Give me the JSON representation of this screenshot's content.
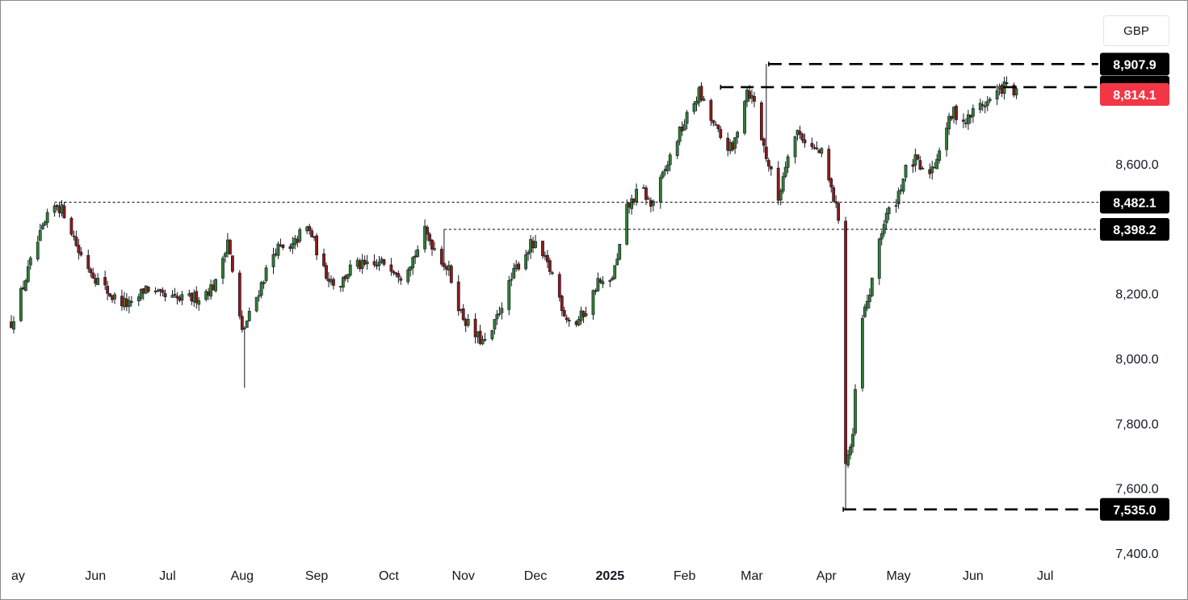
{
  "currency": "GBP",
  "colors": {
    "up": "#2e7d32",
    "down": "#8b1a1a",
    "wick": "#131722",
    "current_price_bg": "#f23645",
    "level_bg": "#000000",
    "axis_text": "#131722"
  },
  "chart_data": {
    "type": "candlestick",
    "ylim": [
      7400,
      8960
    ],
    "y_ticks": [
      "7,400.0",
      "7,600.0",
      "7,800.0",
      "8,000.0",
      "8,200.0",
      "8,600.0"
    ],
    "y_tick_values": [
      7400,
      7600,
      7800,
      8000,
      8200,
      8600
    ],
    "x_ticks": [
      "ay",
      "Jun",
      "Jul",
      "Aug",
      "Sep",
      "Oct",
      "Nov",
      "Dec",
      "2025",
      "Feb",
      "Mar",
      "Apr",
      "May",
      "Jun",
      "Jul"
    ],
    "x_tick_days": [
      14,
      45,
      75,
      106,
      137,
      167,
      198,
      228,
      259,
      290,
      318,
      349,
      379,
      410,
      440
    ],
    "x_tick_bold": [
      false,
      false,
      false,
      false,
      false,
      false,
      false,
      false,
      true,
      false,
      false,
      false,
      false,
      false,
      false
    ],
    "xlim_days": [
      10,
      448
    ],
    "horizontal_levels": [
      {
        "value": 8907.9,
        "label": "8,907.9",
        "style": "dashed",
        "from_day": 325,
        "partially_hidden": true
      },
      {
        "value": 8836.7,
        "label": "8,836.7",
        "style": "dashed",
        "from_day": 305
      },
      {
        "value": 8482.1,
        "label": "8,482.1",
        "style": "dotted",
        "from_day": 28
      },
      {
        "value": 8398.2,
        "label": "8,398.2",
        "style": "dotted",
        "from_day": 190
      },
      {
        "value": 7535.0,
        "label": "7,535.0",
        "style": "dashed",
        "from_day": 356
      }
    ],
    "current_price": {
      "value": 8814.1,
      "label": "8,814.1"
    },
    "close_anchors": [
      [
        10,
        8110
      ],
      [
        14,
        8200
      ],
      [
        20,
        8340
      ],
      [
        26,
        8450
      ],
      [
        29,
        8475
      ],
      [
        33,
        8440
      ],
      [
        38,
        8330
      ],
      [
        45,
        8250
      ],
      [
        52,
        8190
      ],
      [
        60,
        8160
      ],
      [
        66,
        8220
      ],
      [
        72,
        8190
      ],
      [
        80,
        8180
      ],
      [
        88,
        8190
      ],
      [
        95,
        8230
      ],
      [
        100,
        8370
      ],
      [
        103,
        8210
      ],
      [
        106,
        8080
      ],
      [
        110,
        8150
      ],
      [
        116,
        8270
      ],
      [
        120,
        8340
      ],
      [
        126,
        8330
      ],
      [
        132,
        8410
      ],
      [
        135,
        8380
      ],
      [
        140,
        8270
      ],
      [
        146,
        8220
      ],
      [
        152,
        8290
      ],
      [
        160,
        8280
      ],
      [
        166,
        8300
      ],
      [
        172,
        8260
      ],
      [
        178,
        8320
      ],
      [
        182,
        8390
      ],
      [
        187,
        8330
      ],
      [
        192,
        8270
      ],
      [
        197,
        8140
      ],
      [
        203,
        8070
      ],
      [
        208,
        8040
      ],
      [
        214,
        8170
      ],
      [
        220,
        8280
      ],
      [
        226,
        8350
      ],
      [
        229,
        8340
      ],
      [
        235,
        8260
      ],
      [
        240,
        8140
      ],
      [
        244,
        8100
      ],
      [
        250,
        8160
      ],
      [
        254,
        8240
      ],
      [
        258,
        8210
      ],
      [
        262,
        8300
      ],
      [
        266,
        8460
      ],
      [
        272,
        8530
      ],
      [
        276,
        8470
      ],
      [
        282,
        8580
      ],
      [
        287,
        8680
      ],
      [
        292,
        8760
      ],
      [
        296,
        8820
      ],
      [
        300,
        8750
      ],
      [
        305,
        8680
      ],
      [
        310,
        8640
      ],
      [
        314,
        8780
      ],
      [
        316,
        8830
      ],
      [
        319,
        8790
      ],
      [
        322,
        8680
      ],
      [
        326,
        8570
      ],
      [
        329,
        8490
      ],
      [
        333,
        8640
      ],
      [
        337,
        8700
      ],
      [
        343,
        8650
      ],
      [
        347,
        8630
      ],
      [
        351,
        8520
      ],
      [
        354,
        8440
      ],
      [
        355,
        8020
      ],
      [
        357,
        7680
      ],
      [
        360,
        7750
      ],
      [
        362,
        8050
      ],
      [
        365,
        8150
      ],
      [
        368,
        8230
      ],
      [
        371,
        8370
      ],
      [
        374,
        8440
      ],
      [
        378,
        8490
      ],
      [
        382,
        8580
      ],
      [
        386,
        8610
      ],
      [
        390,
        8560
      ],
      [
        394,
        8600
      ],
      [
        398,
        8700
      ],
      [
        402,
        8760
      ],
      [
        407,
        8730
      ],
      [
        412,
        8780
      ],
      [
        416,
        8790
      ],
      [
        420,
        8820
      ],
      [
        423,
        8840
      ],
      [
        426,
        8830
      ],
      [
        428,
        8814
      ]
    ],
    "wick_extremes": [
      {
        "day": 357,
        "low": 7535.0
      },
      {
        "day": 324,
        "high": 8907.9
      },
      {
        "day": 107,
        "low": 7910
      },
      {
        "day": 30,
        "high": 8482.1
      },
      {
        "day": 190,
        "high": 8398.2
      }
    ]
  }
}
